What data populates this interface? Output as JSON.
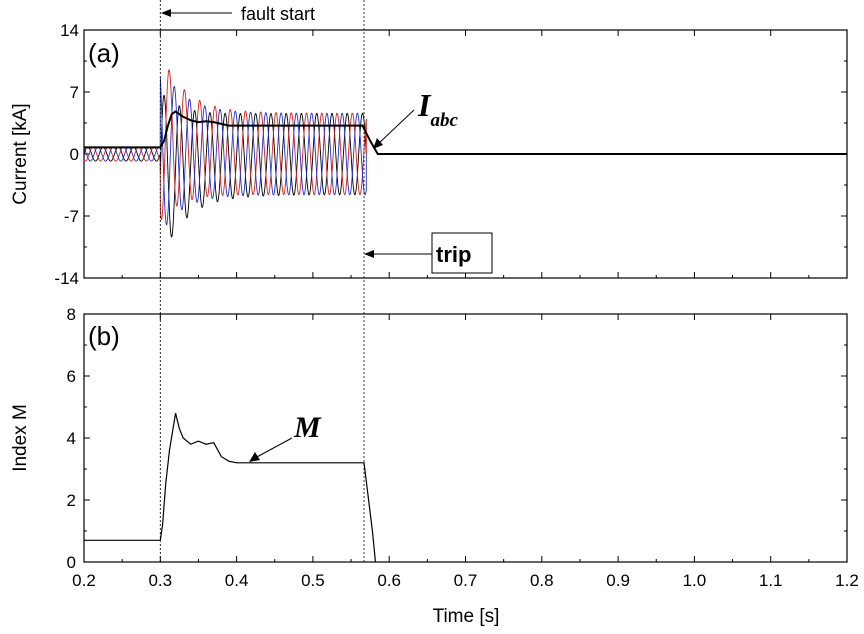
{
  "chart_data": [
    {
      "type": "line",
      "panel_label": "(a)",
      "xlabel": "",
      "ylabel": "Current [kA]",
      "xlim": [
        0.2,
        1.2
      ],
      "ylim": [
        -14,
        14
      ],
      "yticks": [
        14,
        7,
        0,
        -7,
        -14
      ],
      "ytick_labels": [
        "14",
        "7",
        "0",
        "-7",
        "-14"
      ],
      "grid": false,
      "series": [
        {
          "name": "I",
          "name_subscript": "abc",
          "color": "#000000",
          "x": [
            0.2,
            0.3,
            0.305,
            0.31,
            0.315,
            0.32,
            0.33,
            0.34,
            0.35,
            0.36,
            0.37,
            0.38,
            0.39,
            0.4,
            0.45,
            0.5,
            0.565,
            0.575,
            0.585,
            1.2
          ],
          "y": [
            0.75,
            0.75,
            1.5,
            3.2,
            4.5,
            4.8,
            4.2,
            3.8,
            3.6,
            3.7,
            3.6,
            3.4,
            3.2,
            3.2,
            3.2,
            3.2,
            3.2,
            1.5,
            0,
            0
          ]
        }
      ],
      "phase_currents": {
        "colors": [
          "#000000",
          "#d62020",
          "#1f2fd0"
        ],
        "frequency_hz": 50,
        "prefault_peak": 0.8,
        "fault_first_peak": 9.6,
        "fault_steady_peak": 4.6,
        "fault_start": 0.3,
        "cleared_at": 0.57
      },
      "annotations": {
        "fault_start": "fault start",
        "trip": "trip",
        "label_main": "I",
        "label_sub": "abc"
      }
    },
    {
      "type": "line",
      "panel_label": "(b)",
      "xlabel": "Time [s]",
      "ylabel": "Index M",
      "xlim": [
        0.2,
        1.2
      ],
      "ylim": [
        0,
        8
      ],
      "xticks": [
        0.2,
        0.3,
        0.4,
        0.5,
        0.6,
        0.7,
        0.8,
        0.9,
        1.0,
        1.1,
        1.2
      ],
      "xtick_labels": [
        "0.2",
        "0.3",
        "0.4",
        "0.5",
        "0.6",
        "0.7",
        "0.8",
        "0.9",
        "1.0",
        "1.1",
        "1.2"
      ],
      "yticks": [
        0,
        2,
        4,
        6,
        8
      ],
      "ytick_labels": [
        "0",
        "2",
        "4",
        "6",
        "8"
      ],
      "grid": false,
      "series": [
        {
          "name": "M",
          "color": "#000000",
          "x": [
            0.2,
            0.3,
            0.303,
            0.307,
            0.312,
            0.316,
            0.32,
            0.325,
            0.33,
            0.34,
            0.35,
            0.36,
            0.37,
            0.38,
            0.39,
            0.4,
            0.45,
            0.5,
            0.567,
            0.572,
            0.578,
            0.582
          ],
          "y": [
            0.7,
            0.7,
            1.2,
            2.5,
            3.6,
            4.2,
            4.8,
            4.3,
            4.0,
            3.8,
            3.9,
            3.8,
            3.85,
            3.4,
            3.25,
            3.2,
            3.2,
            3.2,
            3.2,
            2.2,
            1.0,
            0
          ]
        }
      ],
      "annotations": {
        "label": "M"
      }
    }
  ],
  "markers": {
    "fault_start_x": 0.3,
    "trip_x": 0.567
  }
}
